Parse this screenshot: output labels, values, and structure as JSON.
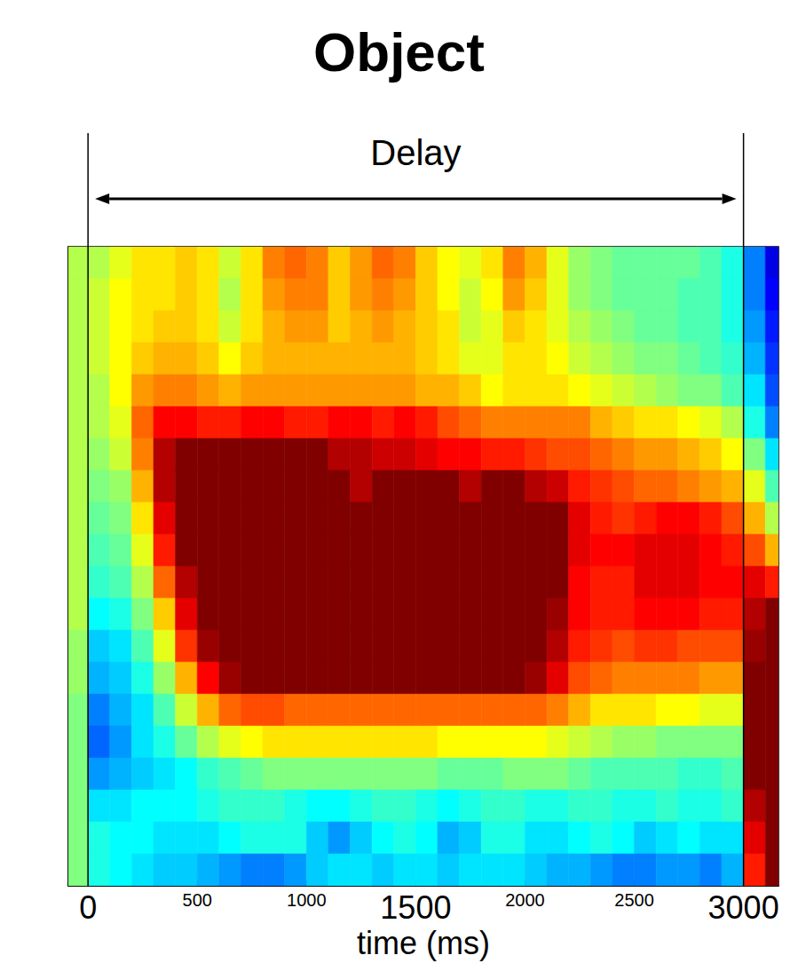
{
  "chart_data": {
    "type": "heatmap",
    "title": "Object",
    "x_label": "time (ms)",
    "annotations": [
      {
        "text": "Delay",
        "x_start": 0,
        "x_end": 3000
      }
    ],
    "xlim": [
      -90,
      3160
    ],
    "ylim": [
      0,
      20
    ],
    "xticks": [
      0,
      500,
      1000,
      1500,
      2000,
      2500,
      3000
    ],
    "yticks": [
      1.6,
      7,
      12.9,
      19.5
    ],
    "tick_labels": "x",
    "grid": false,
    "zlim": [
      -1,
      1
    ],
    "x": [
      -50,
      50,
      150,
      250,
      350,
      450,
      550,
      650,
      750,
      850,
      950,
      1050,
      1150,
      1250,
      1350,
      1450,
      1550,
      1650,
      1750,
      1850,
      1950,
      2050,
      2150,
      2250,
      2350,
      2450,
      2550,
      2650,
      2750,
      2850,
      2950,
      3050,
      3150
    ],
    "y": [
      19.5,
      18.5,
      17.5,
      16.5,
      15.5,
      14.5,
      13.5,
      12.5,
      11.5,
      10.5,
      9.5,
      8.5,
      7.5,
      6.5,
      5.5,
      4.5,
      3.5,
      2.5,
      1.5,
      0.5
    ],
    "z": [
      [
        0.1,
        0.1,
        0.2,
        0.3,
        0.3,
        0.35,
        0.3,
        0.15,
        0.3,
        0.5,
        0.55,
        0.5,
        0.35,
        0.45,
        0.55,
        0.5,
        0.35,
        0.25,
        0.2,
        0.3,
        0.5,
        0.4,
        0.2,
        0.05,
        0,
        -0.05,
        -0.05,
        -0.05,
        -0.05,
        -0.1,
        -0.2,
        -0.5,
        -0.8
      ],
      [
        0.1,
        0.15,
        0.25,
        0.3,
        0.3,
        0.35,
        0.3,
        0.1,
        0.3,
        0.45,
        0.5,
        0.5,
        0.35,
        0.45,
        0.5,
        0.45,
        0.35,
        0.25,
        0.15,
        0.25,
        0.45,
        0.35,
        0.2,
        0.05,
        0,
        -0.05,
        -0.05,
        -0.05,
        -0.1,
        -0.1,
        -0.2,
        -0.5,
        -0.75
      ],
      [
        0.1,
        0.15,
        0.25,
        0.3,
        0.35,
        0.35,
        0.3,
        0.15,
        0.3,
        0.4,
        0.45,
        0.45,
        0.35,
        0.4,
        0.45,
        0.4,
        0.35,
        0.3,
        0.15,
        0.2,
        0.35,
        0.3,
        0.2,
        0.1,
        0.05,
        0,
        -0.05,
        -0.05,
        -0.1,
        -0.1,
        -0.2,
        -0.45,
        -0.7
      ],
      [
        0.1,
        0.15,
        0.25,
        0.35,
        0.4,
        0.4,
        0.35,
        0.25,
        0.35,
        0.4,
        0.4,
        0.4,
        0.4,
        0.4,
        0.4,
        0.4,
        0.35,
        0.3,
        0.2,
        0.2,
        0.3,
        0.3,
        0.25,
        0.15,
        0.1,
        0.05,
        0,
        0,
        -0.05,
        -0.1,
        -0.15,
        -0.4,
        -0.65
      ],
      [
        0.1,
        0.1,
        0.25,
        0.45,
        0.5,
        0.5,
        0.45,
        0.4,
        0.45,
        0.45,
        0.45,
        0.45,
        0.45,
        0.45,
        0.45,
        0.45,
        0.4,
        0.4,
        0.35,
        0.25,
        0.3,
        0.3,
        0.3,
        0.25,
        0.2,
        0.15,
        0.1,
        0.05,
        0,
        0,
        -0.1,
        -0.3,
        -0.6
      ],
      [
        0.1,
        0.1,
        0.2,
        0.55,
        0.75,
        0.75,
        0.7,
        0.7,
        0.75,
        0.75,
        0.7,
        0.7,
        0.75,
        0.75,
        0.7,
        0.75,
        0.7,
        0.6,
        0.55,
        0.5,
        0.5,
        0.5,
        0.5,
        0.5,
        0.4,
        0.35,
        0.3,
        0.3,
        0.25,
        0.2,
        0.1,
        -0.2,
        -0.5
      ],
      [
        0.1,
        0.05,
        0.15,
        0.5,
        0.9,
        1,
        1,
        1,
        1,
        1,
        1,
        1,
        0.9,
        0.9,
        0.85,
        0.85,
        0.8,
        0.75,
        0.75,
        0.7,
        0.7,
        0.65,
        0.6,
        0.6,
        0.55,
        0.5,
        0.45,
        0.45,
        0.4,
        0.35,
        0.25,
        0,
        -0.3
      ],
      [
        0.1,
        0,
        0.05,
        0.4,
        0.9,
        1,
        1,
        1,
        1,
        1,
        1,
        1,
        1,
        0.9,
        1,
        1,
        1,
        1,
        0.9,
        1,
        1,
        0.9,
        0.85,
        0.7,
        0.65,
        0.6,
        0.55,
        0.55,
        0.5,
        0.45,
        0.4,
        0.2,
        -0.1
      ],
      [
        0.1,
        -0.05,
        0,
        0.3,
        0.8,
        1,
        1,
        1,
        1,
        1,
        1,
        1,
        1,
        1,
        1,
        1,
        1,
        1,
        1,
        1,
        1,
        1,
        1,
        0.8,
        0.7,
        0.65,
        0.7,
        0.75,
        0.75,
        0.7,
        0.6,
        0.4,
        0.1
      ],
      [
        0.1,
        -0.1,
        -0.05,
        0.2,
        0.7,
        1,
        1,
        1,
        1,
        1,
        1,
        1,
        1,
        1,
        1,
        1,
        1,
        1,
        1,
        1,
        1,
        1,
        1,
        0.8,
        0.75,
        0.75,
        0.8,
        0.8,
        0.8,
        0.75,
        0.7,
        0.6,
        0.4
      ],
      [
        0.1,
        -0.15,
        -0.1,
        0.1,
        0.55,
        0.9,
        1,
        1,
        1,
        1,
        1,
        1,
        1,
        1,
        1,
        1,
        1,
        1,
        1,
        1,
        1,
        1,
        1,
        0.75,
        0.7,
        0.7,
        0.8,
        0.8,
        0.8,
        0.75,
        0.75,
        0.8,
        0.7
      ],
      [
        0.1,
        -0.25,
        -0.2,
        0,
        0.35,
        0.8,
        1,
        1,
        1,
        1,
        1,
        1,
        1,
        1,
        1,
        1,
        1,
        1,
        1,
        1,
        1,
        1,
        0.95,
        0.75,
        0.7,
        0.7,
        0.75,
        0.75,
        0.75,
        0.7,
        0.7,
        0.9,
        1
      ],
      [
        0.05,
        -0.35,
        -0.3,
        -0.1,
        0.2,
        0.65,
        0.95,
        1,
        1,
        1,
        1,
        1,
        1,
        1,
        1,
        1,
        1,
        1,
        1,
        1,
        1,
        1,
        0.9,
        0.7,
        0.65,
        0.6,
        0.65,
        0.65,
        0.6,
        0.6,
        0.6,
        0.95,
        1
      ],
      [
        0.05,
        -0.4,
        -0.35,
        -0.2,
        0.05,
        0.4,
        0.75,
        0.95,
        1,
        1,
        1,
        1,
        1,
        1,
        1,
        1,
        1,
        1,
        1,
        1,
        1,
        0.95,
        0.8,
        0.6,
        0.55,
        0.5,
        0.5,
        0.5,
        0.5,
        0.45,
        0.45,
        1,
        1
      ],
      [
        0,
        -0.5,
        -0.4,
        -0.3,
        -0.1,
        0.15,
        0.4,
        0.55,
        0.6,
        0.6,
        0.55,
        0.55,
        0.55,
        0.55,
        0.55,
        0.55,
        0.55,
        0.55,
        0.55,
        0.55,
        0.55,
        0.55,
        0.5,
        0.4,
        0.3,
        0.3,
        0.3,
        0.25,
        0.25,
        0.2,
        0.2,
        1,
        1
      ],
      [
        0,
        -0.55,
        -0.45,
        -0.3,
        -0.2,
        -0.05,
        0.1,
        0.2,
        0.25,
        0.3,
        0.3,
        0.3,
        0.3,
        0.3,
        0.3,
        0.3,
        0.3,
        0.25,
        0.25,
        0.25,
        0.25,
        0.25,
        0.2,
        0.15,
        0.1,
        0.05,
        0.05,
        0,
        0,
        0,
        0,
        1,
        1
      ],
      [
        0,
        -0.45,
        -0.4,
        -0.35,
        -0.3,
        -0.25,
        -0.15,
        -0.1,
        -0.05,
        0,
        0,
        0,
        0,
        0,
        0,
        0,
        0,
        -0.05,
        -0.05,
        -0.05,
        0,
        0,
        0,
        -0.05,
        -0.1,
        -0.1,
        -0.1,
        -0.1,
        -0.15,
        -0.15,
        -0.1,
        1,
        1
      ],
      [
        0,
        -0.3,
        -0.3,
        -0.25,
        -0.25,
        -0.25,
        -0.2,
        -0.15,
        -0.15,
        -0.15,
        -0.2,
        -0.25,
        -0.25,
        -0.2,
        -0.15,
        -0.15,
        -0.2,
        -0.25,
        -0.2,
        -0.15,
        -0.15,
        -0.2,
        -0.2,
        -0.15,
        -0.15,
        -0.2,
        -0.2,
        -0.15,
        -0.2,
        -0.2,
        -0.15,
        0.9,
        1
      ],
      [
        0,
        -0.2,
        -0.25,
        -0.25,
        -0.3,
        -0.3,
        -0.3,
        -0.25,
        -0.2,
        -0.2,
        -0.2,
        -0.35,
        -0.45,
        -0.35,
        -0.25,
        -0.2,
        -0.25,
        -0.4,
        -0.35,
        -0.2,
        -0.2,
        -0.3,
        -0.3,
        -0.25,
        -0.2,
        -0.25,
        -0.35,
        -0.3,
        -0.25,
        -0.3,
        -0.3,
        0.8,
        1
      ],
      [
        0,
        -0.2,
        -0.25,
        -0.3,
        -0.35,
        -0.35,
        -0.4,
        -0.45,
        -0.5,
        -0.5,
        -0.45,
        -0.35,
        -0.3,
        -0.3,
        -0.35,
        -0.3,
        -0.3,
        -0.35,
        -0.3,
        -0.3,
        -0.3,
        -0.35,
        -0.4,
        -0.4,
        -0.45,
        -0.5,
        -0.5,
        -0.45,
        -0.45,
        -0.5,
        -0.4,
        0.7,
        1
      ]
    ]
  }
}
